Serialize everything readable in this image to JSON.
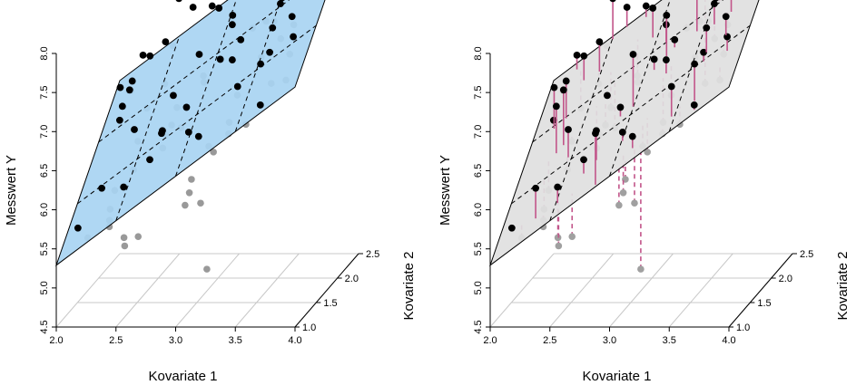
{
  "chart_data": [
    {
      "type": "scatter3d",
      "panel": "left",
      "xlabel": "Kovariate 1",
      "ylabel": "Kovariate 2",
      "zlabel": "Messwert Y",
      "xlim": [
        2.0,
        4.0
      ],
      "ylim": [
        1.0,
        2.5
      ],
      "zlim": [
        4.5,
        8.0
      ],
      "x_ticks": [
        "2.0",
        "2.5",
        "3.0",
        "3.5",
        "4.0"
      ],
      "y_ticks": [
        "1.0",
        "1.5",
        "2.0",
        "2.5"
      ],
      "z_ticks": [
        "4.5",
        "5.0",
        "5.5",
        "6.0",
        "6.5",
        "7.0",
        "7.5",
        "8.0"
      ],
      "plane": {
        "intercept_at_min": 5.29,
        "slope_x": 1.14,
        "slope_y": 0.95
      },
      "plane_color": "#a8d4f2",
      "point_color_above": "#000000",
      "point_color_below": "#999999",
      "residual_lines": false
    },
    {
      "type": "scatter3d",
      "panel": "right",
      "xlabel": "Kovariate 1",
      "ylabel": "Kovariate 2",
      "zlabel": "Messwert Y",
      "xlim": [
        2.0,
        4.0
      ],
      "ylim": [
        1.0,
        2.5
      ],
      "zlim": [
        4.5,
        8.0
      ],
      "x_ticks": [
        "2.0",
        "2.5",
        "3.0",
        "3.5",
        "4.0"
      ],
      "y_ticks": [
        "1.0",
        "1.5",
        "2.0",
        "2.5"
      ],
      "z_ticks": [
        "4.5",
        "5.0",
        "5.5",
        "6.0",
        "6.5",
        "7.0",
        "7.5",
        "8.0"
      ],
      "plane": {
        "intercept_at_min": 5.29,
        "slope_x": 1.14,
        "slope_y": 0.95
      },
      "plane_color": "#e0e0e0",
      "point_color_above": "#000000",
      "point_color_below": "#a0a0a0",
      "residual_lines": true,
      "residual_color": "#c2558a"
    }
  ]
}
